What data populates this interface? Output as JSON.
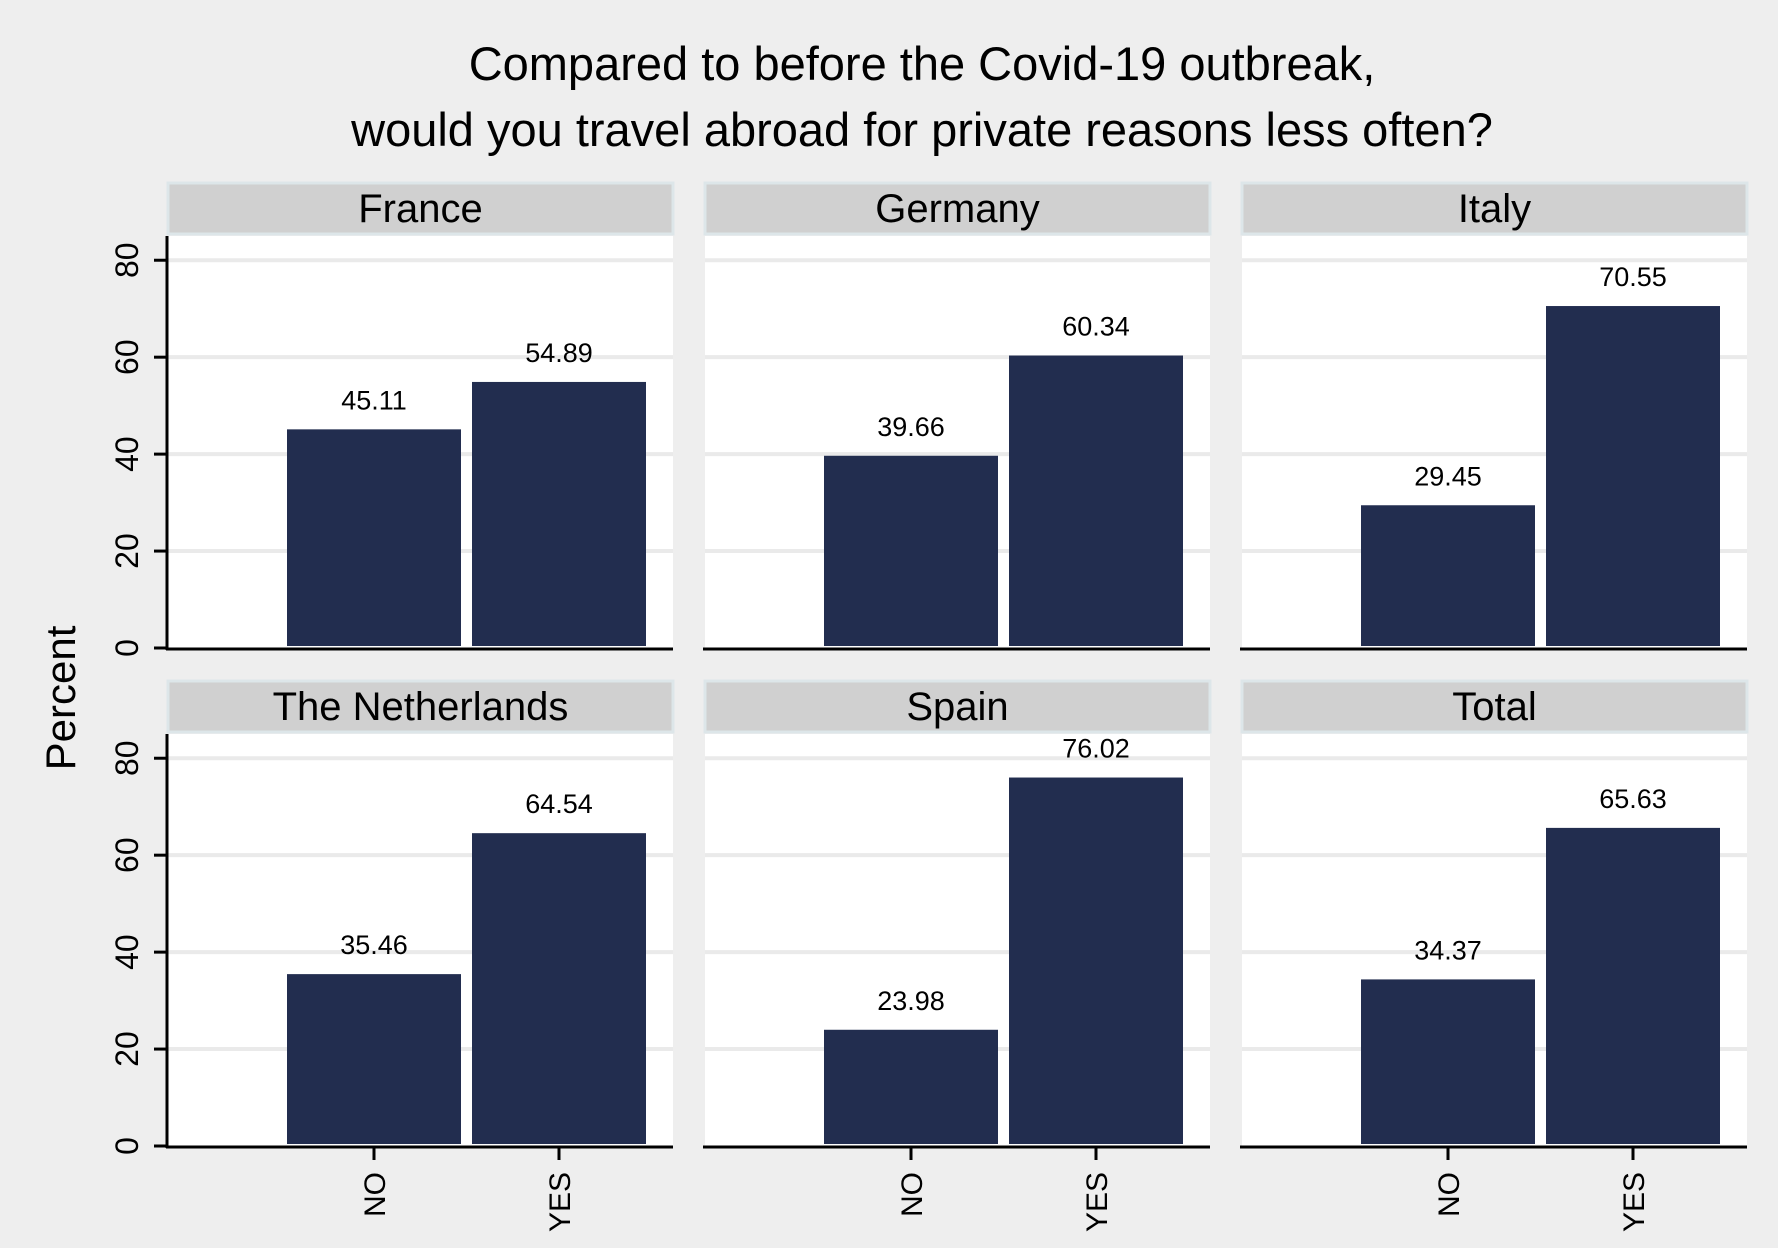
{
  "chart_data": {
    "type": "bar",
    "title": [
      "Compared to before the Covid-19 outbreak,",
      "would you travel abroad for private reasons less often?"
    ],
    "ylabel": "Percent",
    "categories": [
      "NO",
      "YES"
    ],
    "yticks": [
      0,
      20,
      40,
      60,
      80
    ],
    "ylim": [
      0,
      85
    ],
    "panels": [
      {
        "name": "France",
        "values": [
          45.11,
          54.89
        ],
        "labels": [
          "45.11",
          "54.89"
        ]
      },
      {
        "name": "Germany",
        "values": [
          39.66,
          60.34
        ],
        "labels": [
          "39.66",
          "60.34"
        ]
      },
      {
        "name": "Italy",
        "values": [
          29.45,
          70.55
        ],
        "labels": [
          "29.45",
          "70.55"
        ]
      },
      {
        "name": "The Netherlands",
        "values": [
          35.46,
          64.54
        ],
        "labels": [
          "35.46",
          "64.54"
        ]
      },
      {
        "name": "Spain",
        "values": [
          23.98,
          76.02
        ],
        "labels": [
          "23.98",
          "76.02"
        ]
      },
      {
        "name": "Total",
        "values": [
          34.37,
          65.63
        ],
        "labels": [
          "34.37",
          "65.63"
        ]
      }
    ],
    "colors": {
      "bar": "#222d4f",
      "background": "#eeeeee",
      "plot_area": "#ffffff",
      "strip": "#d0d0d0",
      "strip_border": "#dde6e9",
      "grid": "#eaeaea",
      "axis": "#000000"
    },
    "grid": true
  }
}
